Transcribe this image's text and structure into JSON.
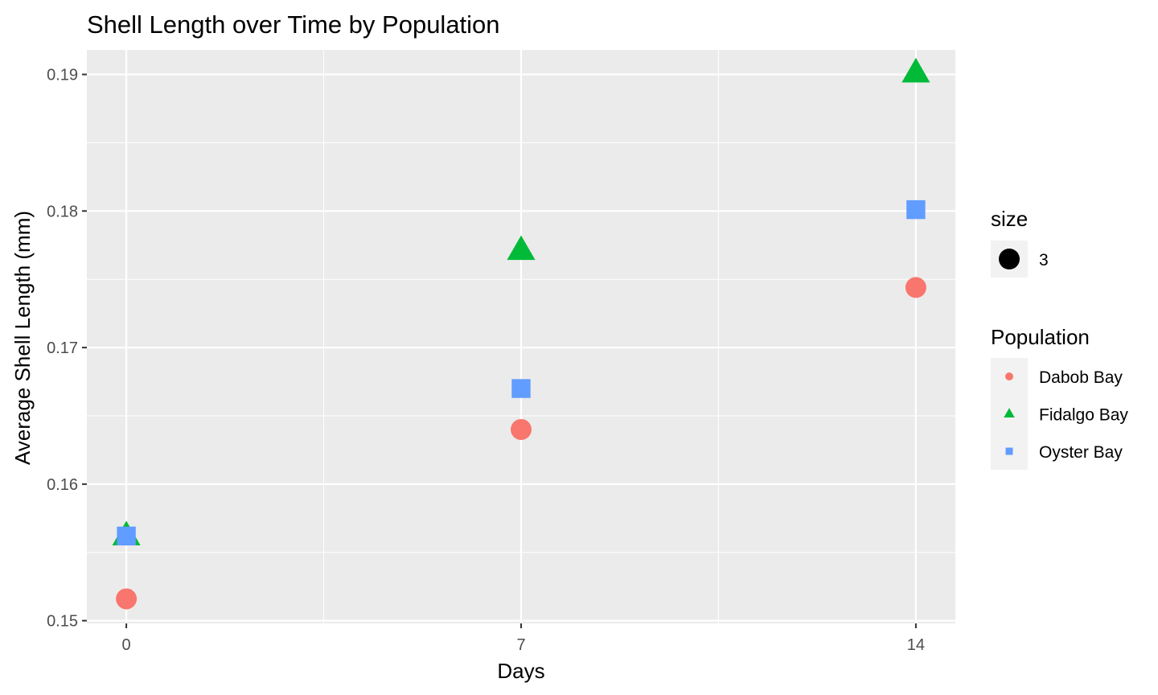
{
  "chart_data": {
    "type": "scatter",
    "title": "Shell Length over Time by Population",
    "xlabel": "Days",
    "ylabel": "Average Shell Length (mm)",
    "x_ticks": [
      "0",
      "7",
      "14"
    ],
    "y_ticks": [
      "0.15",
      "0.16",
      "0.17",
      "0.18",
      "0.19"
    ],
    "xlim": [
      -0.7,
      14.7
    ],
    "ylim": [
      0.1498,
      0.1918
    ],
    "grid": true,
    "legend_position": "right",
    "size_legend": {
      "title": "size",
      "label": "3",
      "color": "#000000"
    },
    "legend_title": "Population",
    "series": [
      {
        "name": "Dabob Bay",
        "shape": "circle",
        "color": "#F8766D",
        "x": [
          0,
          7,
          14
        ],
        "y": [
          0.1516,
          0.164,
          0.1744
        ]
      },
      {
        "name": "Fidalgo Bay",
        "shape": "triangle",
        "color": "#00BA38",
        "x": [
          0,
          7,
          14
        ],
        "y": [
          0.1562,
          0.1771,
          0.1901
        ]
      },
      {
        "name": "Oyster Bay",
        "shape": "square",
        "color": "#619CFF",
        "x": [
          0,
          7,
          14
        ],
        "y": [
          0.1562,
          0.167,
          0.1801
        ]
      }
    ],
    "colors": {
      "panel_background": "#EBEBEB",
      "grid_major": "#FFFFFF",
      "legend_key_background": "#F2F2F2",
      "tick_text": "#4D4D4D",
      "tick_mark": "#333333"
    }
  }
}
